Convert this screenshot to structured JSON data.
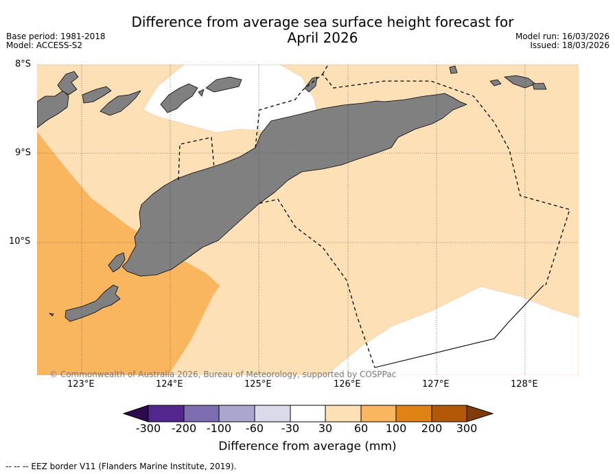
{
  "header": {
    "title_line1": "Difference from average sea surface height forecast for",
    "title_line2": "April 2026",
    "base_period": "Base period: 1981-2018",
    "model": "Model: ACCESS-S2",
    "model_run": "Model run: 16/03/2026",
    "issued": "Issued: 18/03/2026"
  },
  "map": {
    "lat_labels": [
      "8°S",
      "9°S",
      "10°S"
    ],
    "lon_labels": [
      "123°E",
      "124°E",
      "125°E",
      "126°E",
      "127°E",
      "128°E"
    ],
    "copyright": "© Commonwealth of Australia 2026, Bureau of Meteorology, supported by COSPPac",
    "land_color": "#808080",
    "band_30_60_color": "#fde0b5",
    "band_60_100_color": "#fab55f",
    "band_m30_30_color": "#ffffff"
  },
  "colorbar": {
    "ticks": [
      "-300",
      "-200",
      "-100",
      "-60",
      "-30",
      "30",
      "60",
      "100",
      "200",
      "300"
    ],
    "colors": [
      "#2d0a4e",
      "#54278f",
      "#7e6db0",
      "#aba6d0",
      "#dadaeb",
      "#ffffff",
      "#fde0b5",
      "#fab55f",
      "#e08214",
      "#b35806",
      "#7f3b08"
    ],
    "title": "Difference from average (mm)"
  },
  "footer": {
    "legend": "--  --  -- EEZ border V11 (Flanders Marine Institute, 2019)."
  }
}
